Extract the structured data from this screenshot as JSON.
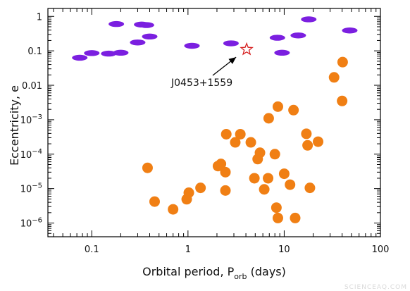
{
  "chart_data": {
    "type": "scatter",
    "xlabel": {
      "main": "Orbital period, P",
      "sub": "orb",
      "unit": " (days)"
    },
    "ylabel": "Eccentricity, e",
    "xscale": "log",
    "yscale": "log",
    "xlim": [
      0.035,
      100
    ],
    "ylim": [
      4e-07,
      1.7
    ],
    "x_ticks": [
      {
        "value": 0.1,
        "label": "0.1"
      },
      {
        "value": 1,
        "label": "1"
      },
      {
        "value": 10,
        "label": "10"
      },
      {
        "value": 100,
        "label": "100"
      }
    ],
    "y_ticks": [
      {
        "value": 1,
        "label": "1"
      },
      {
        "value": 0.1,
        "label": "0.1"
      },
      {
        "value": 0.01,
        "label": "0.01"
      },
      {
        "value": 0.001,
        "base": "10",
        "exp": "−3"
      },
      {
        "value": 0.0001,
        "base": "10",
        "exp": "−4"
      },
      {
        "value": 1e-05,
        "base": "10",
        "exp": "−5"
      },
      {
        "value": 1e-06,
        "base": "10",
        "exp": "−6"
      }
    ],
    "grid": false,
    "series": [
      {
        "marker": "ellipse",
        "color": "#7b1fe0",
        "points": [
          [
            0.075,
            0.063
          ],
          [
            0.1,
            0.086
          ],
          [
            0.15,
            0.083
          ],
          [
            0.18,
            0.6
          ],
          [
            0.2,
            0.088
          ],
          [
            0.3,
            0.175
          ],
          [
            0.33,
            0.58
          ],
          [
            0.37,
            0.56
          ],
          [
            0.4,
            0.26
          ],
          [
            1.1,
            0.14
          ],
          [
            2.8,
            0.165
          ],
          [
            8.5,
            0.24
          ],
          [
            9.5,
            0.088
          ],
          [
            14,
            0.28
          ],
          [
            18,
            0.82
          ],
          [
            48,
            0.39
          ]
        ]
      },
      {
        "marker": "circle",
        "color": "#f07f14",
        "points": [
          [
            0.38,
            4e-05
          ],
          [
            0.45,
            4.2e-06
          ],
          [
            0.7,
            2.5e-06
          ],
          [
            0.97,
            4.9e-06
          ],
          [
            1.02,
            7.6e-06
          ],
          [
            1.35,
            1.05e-05
          ],
          [
            2.05,
            4.5e-05
          ],
          [
            2.2,
            5.2e-05
          ],
          [
            2.45,
            3e-05
          ],
          [
            2.45,
            8.8e-06
          ],
          [
            2.5,
            0.00038
          ],
          [
            3.1,
            0.00022
          ],
          [
            3.5,
            0.00038
          ],
          [
            4.5,
            0.00022
          ],
          [
            4.9,
            2e-05
          ],
          [
            5.3,
            7.2e-05
          ],
          [
            5.6,
            0.00011
          ],
          [
            6.2,
            9.5e-06
          ],
          [
            6.8,
            2e-05
          ],
          [
            6.9,
            0.0011
          ],
          [
            8.0,
            0.0001
          ],
          [
            8.3,
            2.8e-06
          ],
          [
            8.6,
            1.4e-06
          ],
          [
            8.6,
            0.0024
          ],
          [
            10.0,
            2.7e-05
          ],
          [
            11.5,
            1.3e-05
          ],
          [
            12.5,
            0.0019
          ],
          [
            13.0,
            1.4e-06
          ],
          [
            17.0,
            0.00039
          ],
          [
            17.5,
            0.00018
          ],
          [
            18.5,
            1.05e-05
          ],
          [
            22.5,
            0.00023
          ],
          [
            33.0,
            0.017
          ],
          [
            40.0,
            0.0035
          ],
          [
            40.5,
            0.047
          ]
        ]
      }
    ],
    "highlight": {
      "label": "J0453+1559",
      "x": 4.07,
      "y": 0.11,
      "marker": "star",
      "color": "#d62020"
    },
    "watermark": "SCIENCEAQ.COM"
  }
}
